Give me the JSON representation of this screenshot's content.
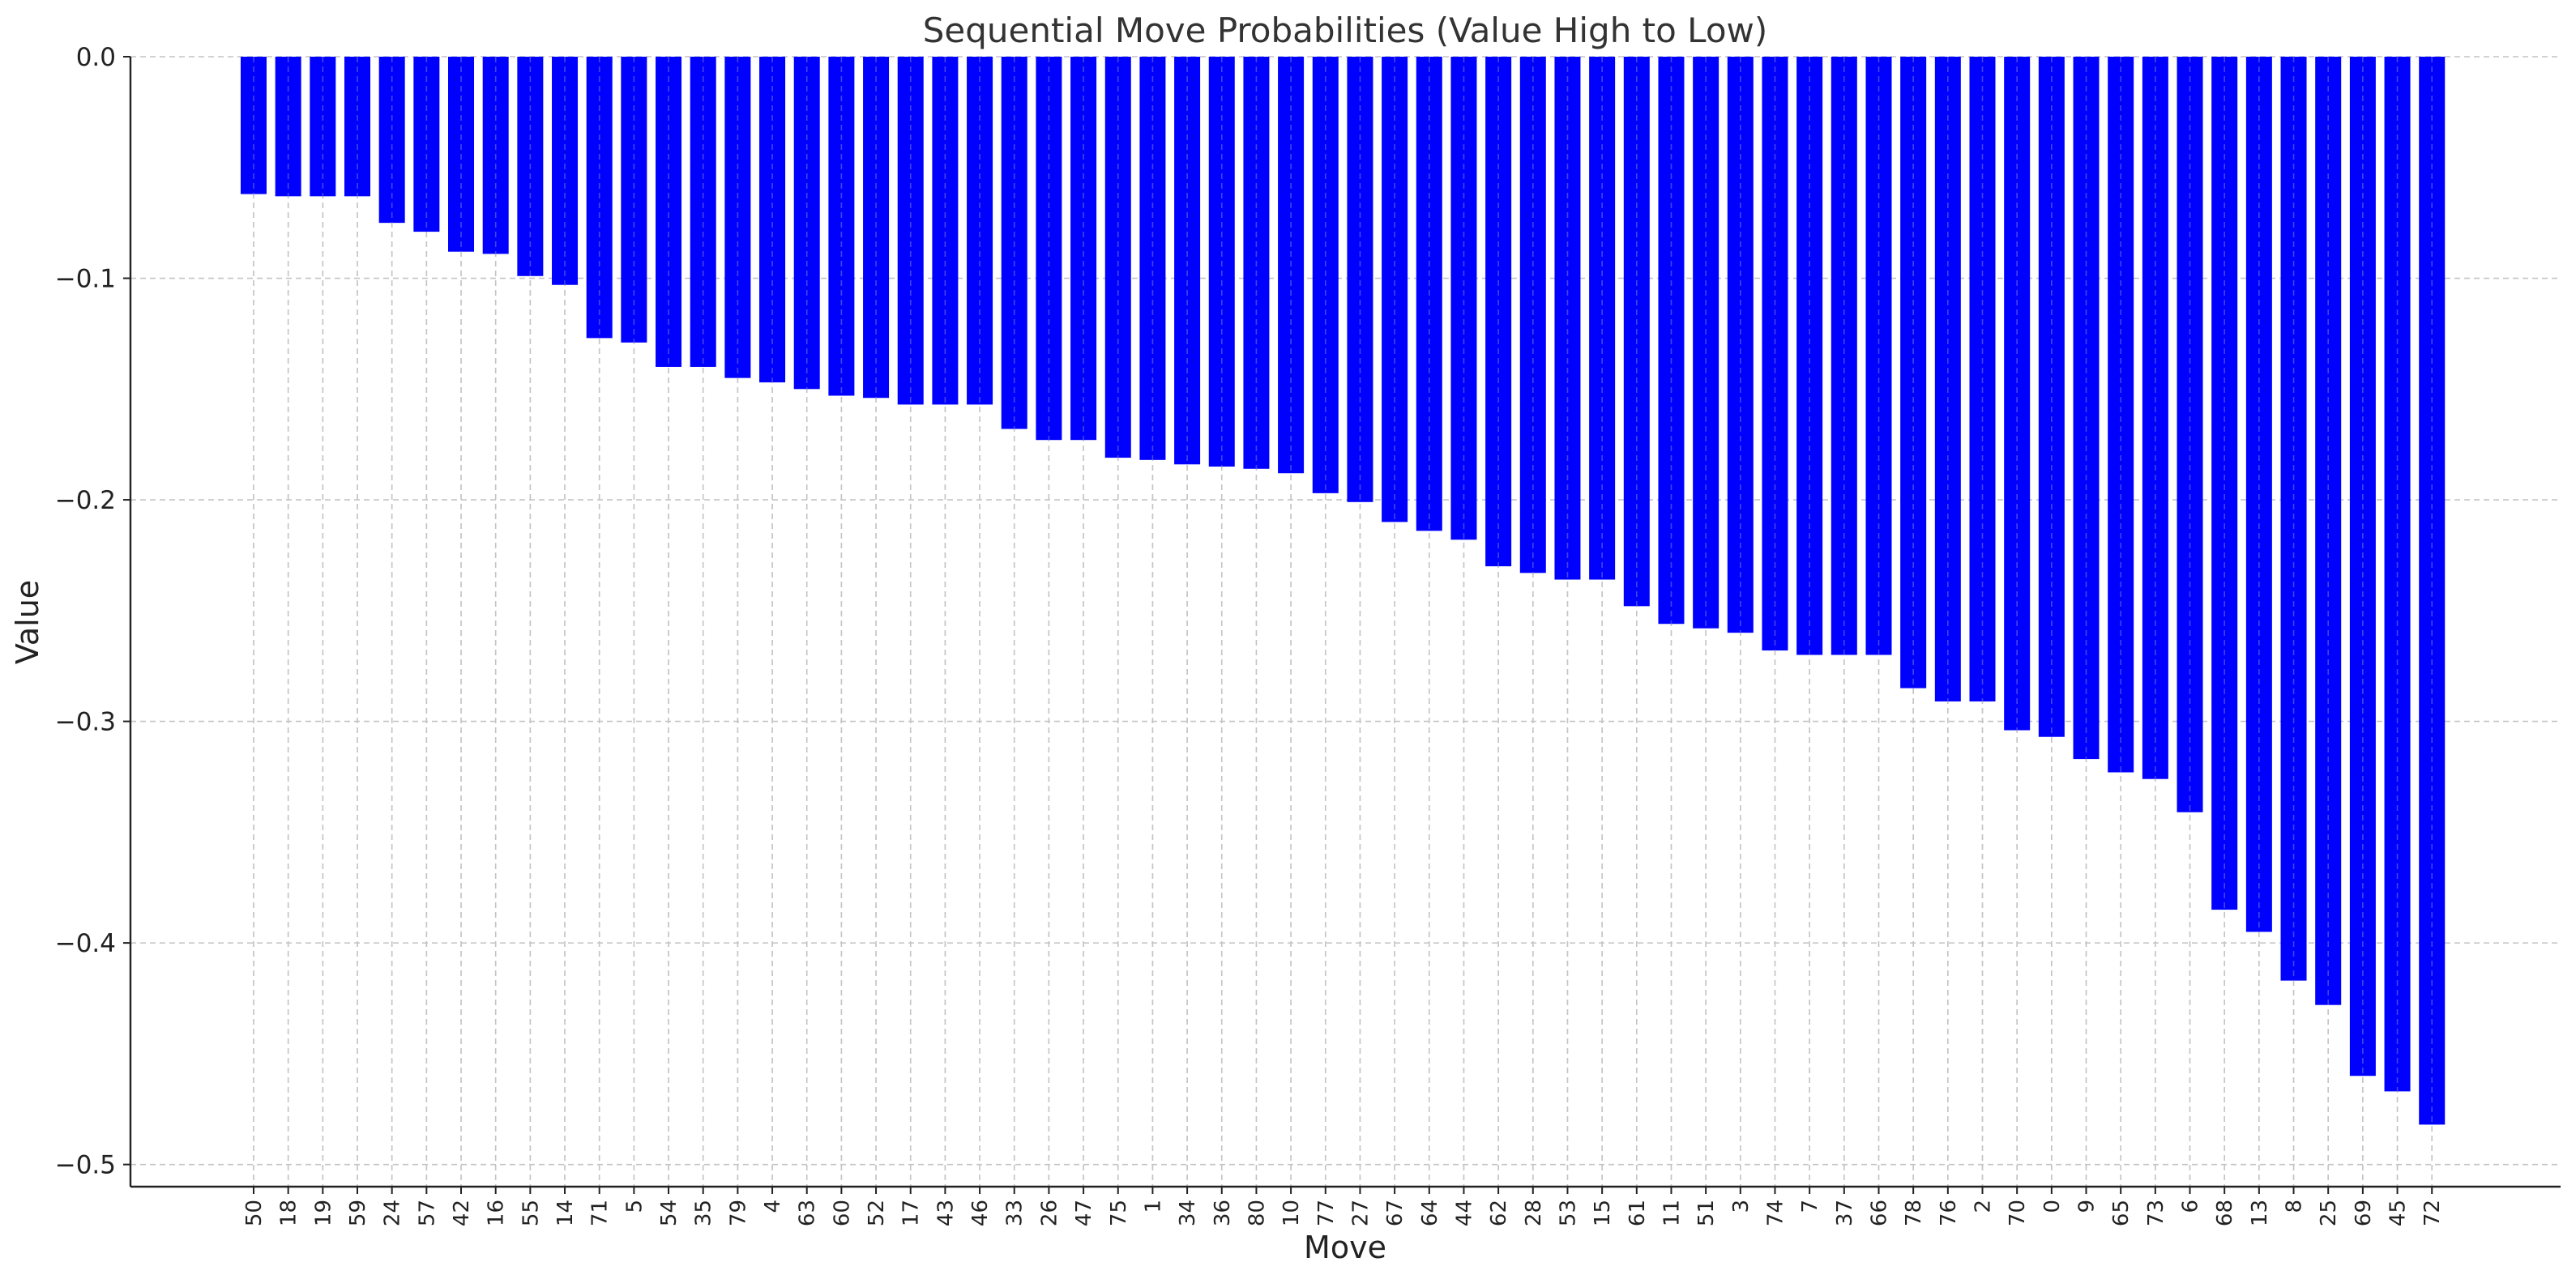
{
  "chart_data": {
    "type": "bar",
    "title": "Sequential Move Probabilities (Value High to Low)",
    "xlabel": "Move",
    "ylabel": "Value",
    "ylim": [
      -0.51,
      0.0
    ],
    "yticks": [
      0.0,
      -0.1,
      -0.2,
      -0.3,
      -0.4,
      -0.5
    ],
    "ytick_labels": [
      "0.0",
      "−0.1",
      "−0.2",
      "−0.3",
      "−0.4",
      "−0.5"
    ],
    "grid": true,
    "bar_color": "#0000ff",
    "categories": [
      "50",
      "18",
      "19",
      "59",
      "24",
      "57",
      "42",
      "16",
      "55",
      "14",
      "71",
      "5",
      "54",
      "35",
      "79",
      "4",
      "63",
      "60",
      "52",
      "17",
      "43",
      "46",
      "33",
      "26",
      "47",
      "75",
      "1",
      "34",
      "36",
      "80",
      "10",
      "77",
      "27",
      "67",
      "64",
      "44",
      "62",
      "28",
      "53",
      "15",
      "61",
      "11",
      "51",
      "3",
      "74",
      "7",
      "37",
      "66",
      "78",
      "76",
      "2",
      "70",
      "0",
      "9",
      "65",
      "73",
      "6",
      "68",
      "13",
      "8",
      "25",
      "69",
      "45",
      "72"
    ],
    "values": [
      -0.062,
      -0.063,
      -0.063,
      -0.063,
      -0.075,
      -0.079,
      -0.088,
      -0.089,
      -0.099,
      -0.103,
      -0.127,
      -0.129,
      -0.14,
      -0.14,
      -0.145,
      -0.147,
      -0.15,
      -0.153,
      -0.154,
      -0.157,
      -0.157,
      -0.157,
      -0.168,
      -0.173,
      -0.173,
      -0.181,
      -0.182,
      -0.184,
      -0.185,
      -0.186,
      -0.188,
      -0.197,
      -0.201,
      -0.21,
      -0.214,
      -0.218,
      -0.23,
      -0.233,
      -0.236,
      -0.236,
      -0.248,
      -0.256,
      -0.258,
      -0.26,
      -0.268,
      -0.27,
      -0.27,
      -0.27,
      -0.285,
      -0.291,
      -0.291,
      -0.304,
      -0.307,
      -0.317,
      -0.323,
      -0.326,
      -0.341,
      -0.385,
      -0.395,
      -0.417,
      -0.428,
      -0.46,
      -0.467,
      -0.482
    ]
  }
}
